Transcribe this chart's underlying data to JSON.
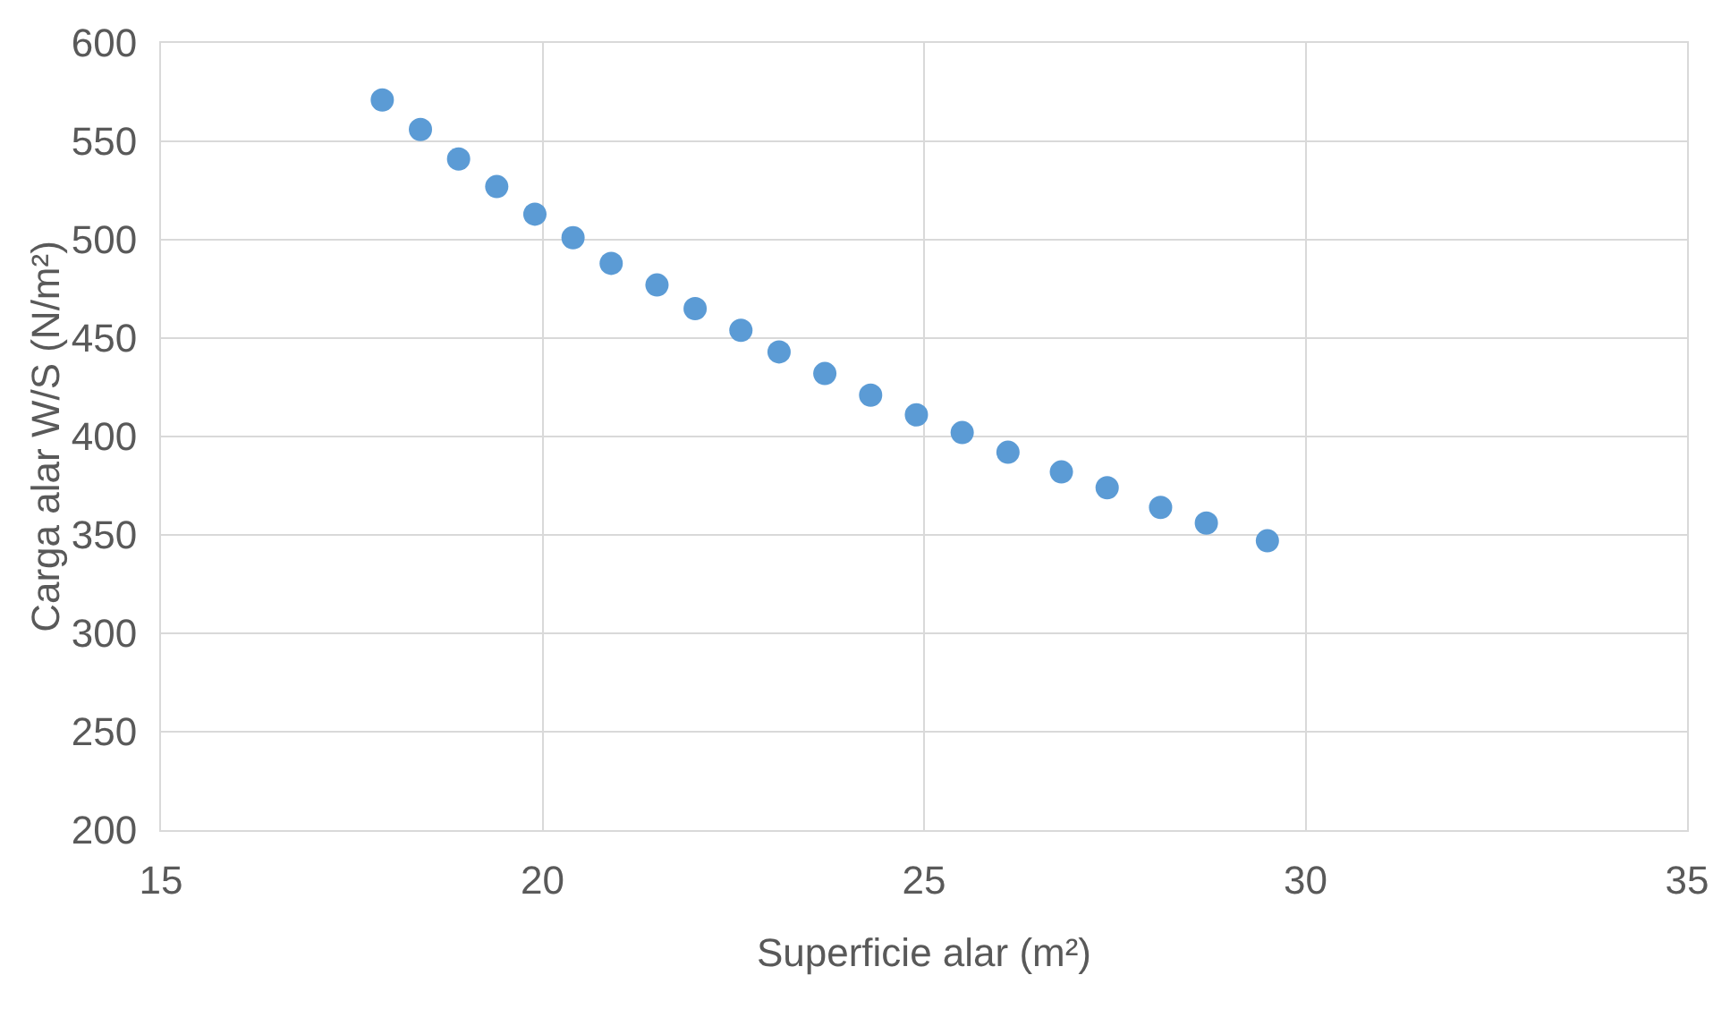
{
  "chart_data": {
    "type": "scatter",
    "xlabel": "Superficie alar (m²)",
    "ylabel": "Carga alar W/S (N/m²)",
    "x": [
      17.9,
      18.4,
      18.9,
      19.4,
      19.9,
      20.4,
      20.9,
      21.5,
      22.0,
      22.6,
      23.1,
      23.7,
      24.3,
      24.9,
      25.5,
      26.1,
      26.8,
      27.4,
      28.1,
      28.7,
      29.5
    ],
    "series": [
      {
        "color": "#5b9bd5",
        "values": [
          571,
          556,
          541,
          527,
          513,
          501,
          488,
          477,
          465,
          454,
          443,
          432,
          421,
          411,
          402,
          392,
          382,
          374,
          364,
          356,
          347
        ]
      }
    ],
    "xlim": [
      15,
      35
    ],
    "xticks": [
      15,
      20,
      25,
      30,
      35
    ],
    "ylim": [
      200,
      600
    ],
    "yticks": [
      200,
      250,
      300,
      350,
      400,
      450,
      500,
      550,
      600
    ],
    "grid": true,
    "marker": "circle"
  }
}
